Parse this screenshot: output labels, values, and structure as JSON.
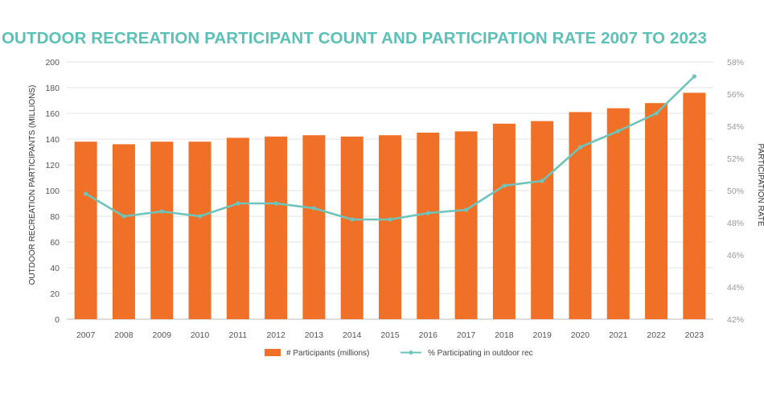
{
  "chart_data": {
    "type": "bar",
    "title": "OUTDOOR RECREATION PARTICIPANT COUNT AND PARTICIPATION RATE 2007 TO 2023",
    "ylabel": "OUTDOOR RECREATION PARTICIPANTS (MILLIONS)",
    "y2label": "PARTICIPATION RATE",
    "ylim": [
      0,
      200
    ],
    "y2lim": [
      42,
      58
    ],
    "yticks": [
      "0",
      "20",
      "40",
      "60",
      "80",
      "100",
      "120",
      "140",
      "160",
      "180",
      "200"
    ],
    "y2ticks": [
      "42%",
      "44%",
      "46%",
      "48%",
      "50%",
      "52%",
      "54%",
      "56%",
      "58%"
    ],
    "categories": [
      "2007",
      "2008",
      "2009",
      "2010",
      "2011",
      "2012",
      "2013",
      "2014",
      "2015",
      "2016",
      "2017",
      "2018",
      "2019",
      "2020",
      "2021",
      "2022",
      "2023"
    ],
    "series": [
      {
        "name": "# Participants (millions)",
        "type": "bar",
        "axis": "left",
        "color": "#f07027",
        "values": [
          138,
          136,
          138,
          138,
          141,
          142,
          143,
          142,
          143,
          145,
          146,
          152,
          154,
          161,
          164,
          168,
          176
        ]
      },
      {
        "name": "% Participating in outdoor rec",
        "type": "line",
        "axis": "right",
        "color": "#6cc4bb",
        "values": [
          49.8,
          48.4,
          48.7,
          48.4,
          49.2,
          49.2,
          48.9,
          48.2,
          48.2,
          48.6,
          48.8,
          50.3,
          50.6,
          52.7,
          53.7,
          54.8,
          57.1
        ]
      }
    ],
    "grid": true,
    "legend": "bottom"
  }
}
